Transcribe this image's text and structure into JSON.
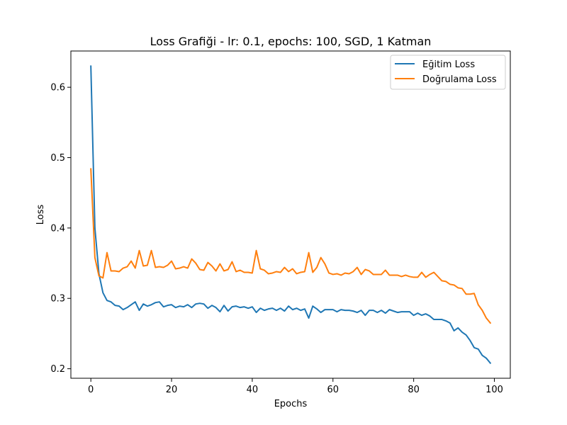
{
  "chart_data": {
    "type": "line",
    "title": "Loss Grafiği - lr: 0.1, epochs: 100, SGD, 1 Katman",
    "xlabel": "Epochs",
    "ylabel": "Loss",
    "xlim": [
      -4.95,
      103.95
    ],
    "ylim": [
      0.1865,
      0.6515
    ],
    "xticks": [
      0,
      20,
      40,
      60,
      80,
      100
    ],
    "yticks": [
      0.2,
      0.3,
      0.4,
      0.5,
      0.6
    ],
    "xtick_labels": [
      "0",
      "20",
      "40",
      "60",
      "80",
      "100"
    ],
    "ytick_labels": [
      "0.2",
      "0.3",
      "0.4",
      "0.5",
      "0.6"
    ],
    "grid": false,
    "legend_position": "top-right",
    "x": [
      0,
      1,
      2,
      3,
      4,
      5,
      6,
      7,
      8,
      9,
      10,
      11,
      12,
      13,
      14,
      15,
      16,
      17,
      18,
      19,
      20,
      21,
      22,
      23,
      24,
      25,
      26,
      27,
      28,
      29,
      30,
      31,
      32,
      33,
      34,
      35,
      36,
      37,
      38,
      39,
      40,
      41,
      42,
      43,
      44,
      45,
      46,
      47,
      48,
      49,
      50,
      51,
      52,
      53,
      54,
      55,
      56,
      57,
      58,
      59,
      60,
      61,
      62,
      63,
      64,
      65,
      66,
      67,
      68,
      69,
      70,
      71,
      72,
      73,
      74,
      75,
      76,
      77,
      78,
      79,
      80,
      81,
      82,
      83,
      84,
      85,
      86,
      87,
      88,
      89,
      90,
      91,
      92,
      93,
      94,
      95,
      96,
      97,
      98,
      99
    ],
    "series": [
      {
        "name": "Eğitim Loss",
        "color": "#1f77b4",
        "values": [
          0.63,
          0.4,
          0.335,
          0.308,
          0.297,
          0.295,
          0.29,
          0.289,
          0.284,
          0.287,
          0.291,
          0.295,
          0.283,
          0.292,
          0.289,
          0.291,
          0.294,
          0.295,
          0.288,
          0.29,
          0.291,
          0.287,
          0.289,
          0.288,
          0.291,
          0.287,
          0.292,
          0.293,
          0.292,
          0.286,
          0.29,
          0.287,
          0.281,
          0.29,
          0.282,
          0.288,
          0.289,
          0.287,
          0.288,
          0.286,
          0.288,
          0.28,
          0.286,
          0.283,
          0.285,
          0.286,
          0.283,
          0.286,
          0.282,
          0.289,
          0.284,
          0.286,
          0.283,
          0.285,
          0.272,
          0.289,
          0.285,
          0.28,
          0.284,
          0.284,
          0.284,
          0.281,
          0.284,
          0.283,
          0.283,
          0.282,
          0.28,
          0.283,
          0.276,
          0.283,
          0.283,
          0.28,
          0.283,
          0.279,
          0.284,
          0.282,
          0.28,
          0.281,
          0.281,
          0.281,
          0.276,
          0.279,
          0.276,
          0.278,
          0.275,
          0.27,
          0.27,
          0.27,
          0.268,
          0.265,
          0.254,
          0.258,
          0.252,
          0.248,
          0.24,
          0.23,
          0.228,
          0.219,
          0.215,
          0.208
        ]
      },
      {
        "name": "Doğrulama Loss",
        "color": "#ff7f0e",
        "values": [
          0.484,
          0.358,
          0.332,
          0.329,
          0.365,
          0.339,
          0.339,
          0.338,
          0.343,
          0.345,
          0.353,
          0.343,
          0.368,
          0.346,
          0.347,
          0.368,
          0.344,
          0.345,
          0.344,
          0.347,
          0.353,
          0.342,
          0.343,
          0.345,
          0.343,
          0.356,
          0.35,
          0.341,
          0.34,
          0.351,
          0.346,
          0.339,
          0.349,
          0.339,
          0.341,
          0.352,
          0.338,
          0.34,
          0.337,
          0.337,
          0.336,
          0.368,
          0.342,
          0.34,
          0.335,
          0.336,
          0.338,
          0.337,
          0.344,
          0.338,
          0.342,
          0.335,
          0.337,
          0.338,
          0.365,
          0.337,
          0.344,
          0.358,
          0.349,
          0.336,
          0.334,
          0.335,
          0.333,
          0.336,
          0.335,
          0.338,
          0.344,
          0.334,
          0.341,
          0.339,
          0.334,
          0.334,
          0.334,
          0.34,
          0.333,
          0.333,
          0.333,
          0.331,
          0.333,
          0.331,
          0.33,
          0.33,
          0.337,
          0.33,
          0.334,
          0.337,
          0.331,
          0.325,
          0.324,
          0.32,
          0.319,
          0.315,
          0.314,
          0.306,
          0.306,
          0.307,
          0.291,
          0.283,
          0.272,
          0.265
        ]
      }
    ]
  }
}
